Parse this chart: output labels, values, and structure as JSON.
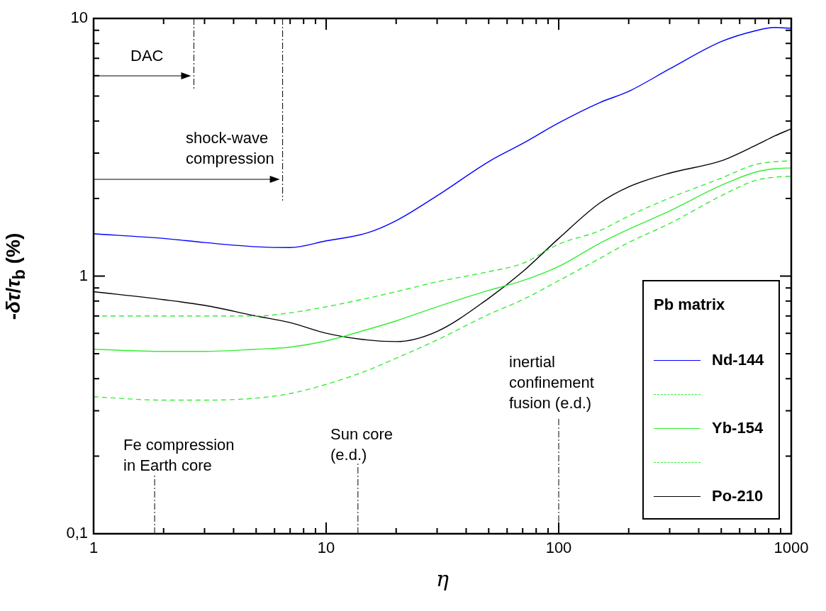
{
  "chart_data": {
    "type": "line",
    "xlabel": "η",
    "ylabel": "-δτ/τ$_{b}$   (%)",
    "legend_title": "Pb matrix",
    "legend": "bottom right",
    "log": "xy",
    "line_style": "solid",
    "x": [
      1,
      2,
      3,
      5,
      7,
      10,
      15,
      20,
      30,
      50,
      70,
      100,
      150,
      200,
      300,
      500,
      700,
      850,
      1000
    ],
    "xlim": [
      1,
      1000
    ],
    "ylim": [
      0.1,
      10
    ],
    "xticks": [
      1,
      {
        "value": 2,
        "label": null
      },
      {
        "value": 3,
        "label": null
      },
      {
        "value": 4,
        "label": null
      },
      {
        "value": 5,
        "label": null
      },
      {
        "value": 6,
        "label": null
      },
      {
        "value": 7,
        "label": null
      },
      {
        "value": 8,
        "label": null
      },
      {
        "value": 9,
        "label": null
      },
      10,
      {
        "value": 20,
        "label": null
      },
      {
        "value": 30,
        "label": null
      },
      {
        "value": 40,
        "label": null
      },
      {
        "value": 50,
        "label": null
      },
      {
        "value": 60,
        "label": null
      },
      {
        "value": 70,
        "label": null
      },
      {
        "value": 80,
        "label": null
      },
      {
        "value": 90,
        "label": null
      },
      100,
      {
        "value": 200,
        "label": null
      },
      {
        "value": 300,
        "label": null
      },
      {
        "value": 400,
        "label": null
      },
      {
        "value": 500,
        "label": null
      },
      {
        "value": 600,
        "label": null
      },
      {
        "value": 700,
        "label": null
      },
      {
        "value": 800,
        "label": null
      },
      {
        "value": 900,
        "label": null
      },
      1000
    ],
    "yticks": [
      {
        "value": 0.1,
        "label": "0,1"
      },
      {
        "value": 0.2,
        "label": null
      },
      {
        "value": 0.3,
        "label": null
      },
      {
        "value": 0.4,
        "label": null
      },
      {
        "value": 0.5,
        "label": null
      },
      {
        "value": 0.6,
        "label": null
      },
      {
        "value": 0.7,
        "label": null
      },
      {
        "value": 0.8,
        "label": null
      },
      {
        "value": 0.9,
        "label": null
      },
      1,
      {
        "value": 2,
        "label": null
      },
      {
        "value": 3,
        "label": null
      },
      {
        "value": 4,
        "label": null
      },
      {
        "value": 5,
        "label": null
      },
      {
        "value": 6,
        "label": null
      },
      {
        "value": 7,
        "label": null
      },
      {
        "value": 8,
        "label": null
      },
      {
        "value": 9,
        "label": null
      },
      10
    ],
    "series": [
      {
        "name": "Nd-144",
        "color": "#0000ff",
        "values": [
          1.46,
          1.4,
          1.35,
          1.3,
          1.29,
          1.37,
          1.47,
          1.64,
          2.05,
          2.78,
          3.27,
          3.93,
          4.71,
          5.21,
          6.37,
          8.13,
          8.95,
          9.22,
          9.16
        ]
      },
      {
        "color": "#33ee33",
        "line_style": "dashed",
        "values": [
          0.7,
          0.7,
          0.7,
          0.7,
          0.72,
          0.76,
          0.82,
          0.87,
          0.95,
          1.04,
          1.12,
          1.33,
          1.5,
          1.71,
          2.01,
          2.4,
          2.71,
          2.78,
          2.8
        ]
      },
      {
        "name": "Yb-154",
        "color": "#33ee33",
        "values": [
          0.52,
          0.51,
          0.51,
          0.52,
          0.53,
          0.56,
          0.62,
          0.67,
          0.76,
          0.88,
          0.96,
          1.09,
          1.34,
          1.52,
          1.79,
          2.25,
          2.53,
          2.61,
          2.63
        ]
      },
      {
        "color": "#33ee33",
        "line_style": "dashed",
        "values": [
          0.34,
          0.33,
          0.33,
          0.336,
          0.35,
          0.38,
          0.43,
          0.48,
          0.565,
          0.71,
          0.81,
          0.96,
          1.17,
          1.35,
          1.6,
          2.05,
          2.35,
          2.42,
          2.44
        ]
      },
      {
        "name": "Po-210",
        "color": "#000000",
        "values": [
          0.87,
          0.81,
          0.77,
          0.7,
          0.66,
          0.6,
          0.565,
          0.557,
          0.61,
          0.82,
          1.04,
          1.4,
          1.92,
          2.22,
          2.51,
          2.8,
          3.21,
          3.5,
          3.73
        ]
      }
    ],
    "ref_lines": [
      {
        "axis": "x",
        "value": 2.7,
        "label": "DAC",
        "line_style": "dashdot"
      },
      {
        "axis": "x",
        "value": 6.5,
        "label": "shock-wave compression",
        "line_style": "dashdot"
      },
      {
        "axis": "x",
        "value": 1.83,
        "label": "Fe compression in Earth core",
        "line_style": "dashdot"
      },
      {
        "axis": "x",
        "value": 13.7,
        "label": "Sun core (e.d.)",
        "line_style": "dashdot"
      },
      {
        "axis": "x",
        "value": 100,
        "label": "inertial confinement fusion (e.d.)",
        "line_style": "dashdot"
      }
    ]
  }
}
